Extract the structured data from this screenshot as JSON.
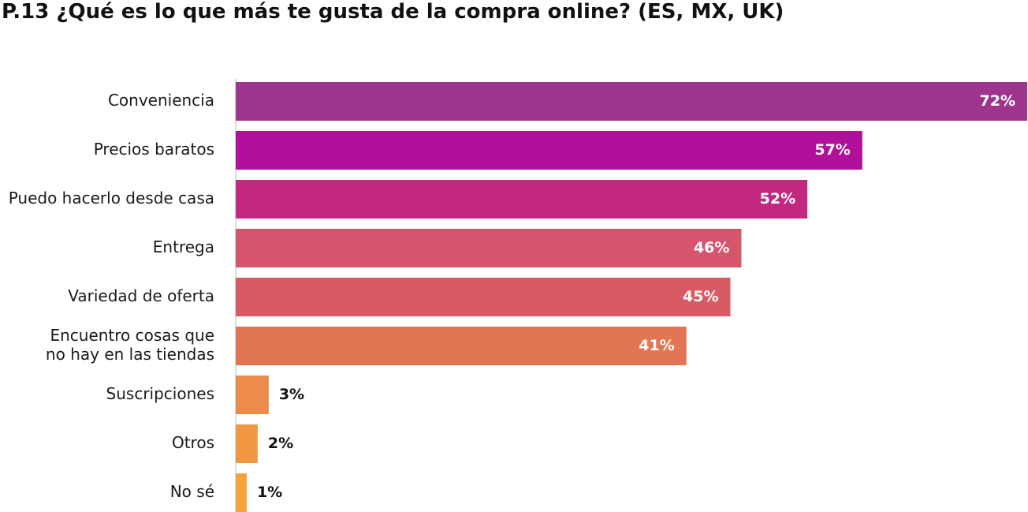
{
  "chart_data": {
    "type": "bar",
    "orientation": "horizontal",
    "title": "P.13 ¿Qué es lo que más te gusta de la compra online? (ES, MX, UK)",
    "categories": [
      [
        "Conveniencia"
      ],
      [
        "Precios baratos"
      ],
      [
        "Puedo hacerlo desde casa"
      ],
      [
        "Entrega"
      ],
      [
        "Variedad de oferta"
      ],
      [
        "Encuentro cosas que",
        "no hay en las tiendas"
      ],
      [
        "Suscripciones"
      ],
      [
        "Otros"
      ],
      [
        "No sé"
      ]
    ],
    "values": [
      72,
      57,
      52,
      46,
      45,
      41,
      3,
      2,
      1
    ],
    "value_labels": [
      "72%",
      "57%",
      "52%",
      "46%",
      "45%",
      "41%",
      "3%",
      "2%",
      "1%"
    ],
    "colors": [
      "#9e348b",
      "#b1109a",
      "#c2287f",
      "#d5556d",
      "#d85a64",
      "#e27553",
      "#ec8c4a",
      "#f29843",
      "#f5a43b"
    ],
    "xlim": [
      0,
      72
    ],
    "grid": false,
    "legend": "none"
  }
}
